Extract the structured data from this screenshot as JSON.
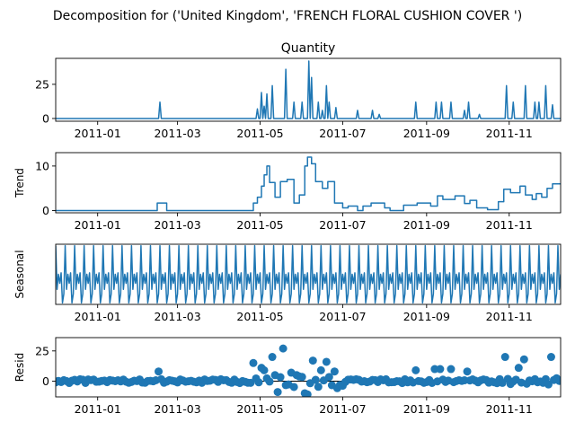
{
  "chart_data": {
    "type": "line",
    "suptitle": "Decomposition for ('United Kingdom', 'FRENCH FLORAL CUSHION COVER ')",
    "x_range": [
      "2010-12-01",
      "2011-12-09"
    ],
    "x_ticks": [
      "2011-01",
      "2011-03",
      "2011-05",
      "2011-07",
      "2011-09",
      "2011-11"
    ],
    "color": "#1f77b4",
    "panels": [
      {
        "id": "observed",
        "title": "Quantity",
        "ylabel": "",
        "kind": "line",
        "ylim": [
          -2,
          44
        ],
        "y_ticks": [
          "0",
          "25"
        ],
        "y_tick_values": [
          0,
          25
        ],
        "baseline": 0,
        "spikes": [
          [
            "2011-02-16",
            12
          ],
          [
            "2011-04-29",
            7
          ],
          [
            "2011-05-02",
            19
          ],
          [
            "2011-05-04",
            9
          ],
          [
            "2011-05-06",
            18
          ],
          [
            "2011-05-10",
            24
          ],
          [
            "2011-05-20",
            36
          ],
          [
            "2011-05-26",
            12
          ],
          [
            "2011-06-01",
            12
          ],
          [
            "2011-06-06",
            42
          ],
          [
            "2011-06-08",
            30
          ],
          [
            "2011-06-13",
            12
          ],
          [
            "2011-06-16",
            6
          ],
          [
            "2011-06-19",
            24
          ],
          [
            "2011-06-21",
            12
          ],
          [
            "2011-06-26",
            8
          ],
          [
            "2011-07-12",
            6
          ],
          [
            "2011-07-23",
            6
          ],
          [
            "2011-07-28",
            3
          ],
          [
            "2011-08-24",
            12
          ],
          [
            "2011-09-08",
            12
          ],
          [
            "2011-09-12",
            12
          ],
          [
            "2011-09-19",
            12
          ],
          [
            "2011-09-29",
            6
          ],
          [
            "2011-10-02",
            12
          ],
          [
            "2011-10-10",
            3
          ],
          [
            "2011-10-30",
            24
          ],
          [
            "2011-11-04",
            12
          ],
          [
            "2011-11-13",
            24
          ],
          [
            "2011-11-20",
            12
          ],
          [
            "2011-11-23",
            12
          ],
          [
            "2011-11-28",
            24
          ],
          [
            "2011-12-03",
            10
          ]
        ]
      },
      {
        "id": "trend",
        "title": "",
        "ylabel": "Trend",
        "kind": "step",
        "ylim": [
          -0.5,
          13
        ],
        "y_ticks": [
          "0",
          "10"
        ],
        "y_tick_values": [
          0,
          10
        ],
        "levels": [
          [
            "2010-12-01",
            0
          ],
          [
            "2011-02-14",
            1.7
          ],
          [
            "2011-02-21",
            0
          ],
          [
            "2011-04-26",
            1.7
          ],
          [
            "2011-04-29",
            3
          ],
          [
            "2011-05-02",
            5.5
          ],
          [
            "2011-05-04",
            8
          ],
          [
            "2011-05-06",
            10
          ],
          [
            "2011-05-08",
            6.3
          ],
          [
            "2011-05-12",
            3
          ],
          [
            "2011-05-16",
            6.5
          ],
          [
            "2011-05-21",
            7
          ],
          [
            "2011-05-26",
            1.7
          ],
          [
            "2011-05-30",
            3.5
          ],
          [
            "2011-06-03",
            10
          ],
          [
            "2011-06-05",
            12
          ],
          [
            "2011-06-08",
            10.5
          ],
          [
            "2011-06-11",
            6.5
          ],
          [
            "2011-06-16",
            5
          ],
          [
            "2011-06-20",
            6.5
          ],
          [
            "2011-06-25",
            1.7
          ],
          [
            "2011-07-01",
            0.6
          ],
          [
            "2011-07-05",
            1
          ],
          [
            "2011-07-12",
            0
          ],
          [
            "2011-07-16",
            1
          ],
          [
            "2011-07-22",
            1.7
          ],
          [
            "2011-08-01",
            0.6
          ],
          [
            "2011-08-05",
            0
          ],
          [
            "2011-08-15",
            1.2
          ],
          [
            "2011-08-25",
            1.7
          ],
          [
            "2011-09-04",
            1
          ],
          [
            "2011-09-09",
            3.3
          ],
          [
            "2011-09-13",
            2.5
          ],
          [
            "2011-09-22",
            3.3
          ],
          [
            "2011-09-29",
            1.6
          ],
          [
            "2011-10-03",
            2.3
          ],
          [
            "2011-10-08",
            0.6
          ],
          [
            "2011-10-16",
            0.2
          ],
          [
            "2011-10-24",
            2
          ],
          [
            "2011-10-28",
            4.8
          ],
          [
            "2011-11-02",
            4
          ],
          [
            "2011-11-09",
            5.5
          ],
          [
            "2011-11-13",
            3.5
          ],
          [
            "2011-11-18",
            2.5
          ],
          [
            "2011-11-21",
            3.8
          ],
          [
            "2011-11-25",
            3
          ],
          [
            "2011-11-29",
            5
          ],
          [
            "2011-12-03",
            6
          ],
          [
            "2011-12-09",
            6
          ]
        ]
      },
      {
        "id": "seasonal",
        "title": "",
        "ylabel": "Seasonal",
        "kind": "periodic",
        "ylim": [
          -1.6,
          2.4
        ],
        "y_ticks": [],
        "y_tick_values": [],
        "period_days": 7,
        "pattern": [
          2.3,
          -0.6,
          0.4,
          -0.2,
          0.5,
          -1.5,
          -0.9
        ]
      },
      {
        "id": "resid",
        "title": "",
        "ylabel": "Resid",
        "kind": "scatter",
        "ylim": [
          -13,
          36
        ],
        "y_ticks": [
          "0",
          "25"
        ],
        "y_tick_values": [
          0,
          25
        ],
        "outliers": [
          [
            "2011-02-16",
            8
          ],
          [
            "2011-04-27",
            15
          ],
          [
            "2011-05-03",
            11
          ],
          [
            "2011-05-05",
            9
          ],
          [
            "2011-05-10",
            20
          ],
          [
            "2011-05-19",
            27
          ],
          [
            "2011-05-24",
            7
          ],
          [
            "2011-06-06",
            31
          ],
          [
            "2011-06-09",
            17
          ],
          [
            "2011-06-16",
            9
          ],
          [
            "2011-06-19",
            16
          ],
          [
            "2011-06-25",
            8
          ],
          [
            "2011-05-28",
            5
          ],
          [
            "2011-06-03",
            -10
          ],
          [
            "2011-06-05",
            -11
          ],
          [
            "2011-05-14",
            -9
          ],
          [
            "2011-08-24",
            9
          ],
          [
            "2011-09-08",
            10
          ],
          [
            "2011-09-12",
            10
          ],
          [
            "2011-09-19",
            10
          ],
          [
            "2011-10-02",
            8
          ],
          [
            "2011-10-30",
            20
          ],
          [
            "2011-11-09",
            11
          ],
          [
            "2011-11-13",
            18
          ],
          [
            "2011-12-03",
            20
          ]
        ]
      }
    ]
  }
}
